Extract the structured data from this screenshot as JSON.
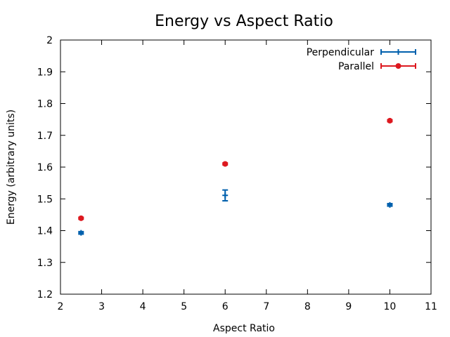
{
  "chart_data": {
    "type": "scatter",
    "title": "Energy vs Aspect Ratio",
    "xlabel": "Aspect Ratio",
    "ylabel": "Energy (arbitrary units)",
    "xlim": [
      2,
      11
    ],
    "ylim": [
      1.2,
      2
    ],
    "xticks": [
      "2",
      "3",
      "4",
      "5",
      "6",
      "7",
      "8",
      "9",
      "10",
      "11"
    ],
    "yticks": [
      "1.2",
      "1.3",
      "1.4",
      "1.5",
      "1.6",
      "1.7",
      "1.8",
      "1.9",
      "2"
    ],
    "grid": false,
    "legend_position": "top-right",
    "series": [
      {
        "name": "Perpendicular",
        "color": "#0060ad",
        "marker": "plus",
        "points": [
          {
            "x": 2.5,
            "y": 1.393,
            "err": 0.004
          },
          {
            "x": 6,
            "y": 1.511,
            "err": 0.017
          },
          {
            "x": 10,
            "y": 1.481,
            "err": 0.004
          }
        ]
      },
      {
        "name": "Parallel",
        "color": "#dd181f",
        "marker": "circle",
        "points": [
          {
            "x": 2.5,
            "y": 1.439,
            "err": 0.003
          },
          {
            "x": 6,
            "y": 1.61,
            "err": 0.003
          },
          {
            "x": 10,
            "y": 1.746,
            "err": 0.003
          }
        ]
      }
    ]
  }
}
